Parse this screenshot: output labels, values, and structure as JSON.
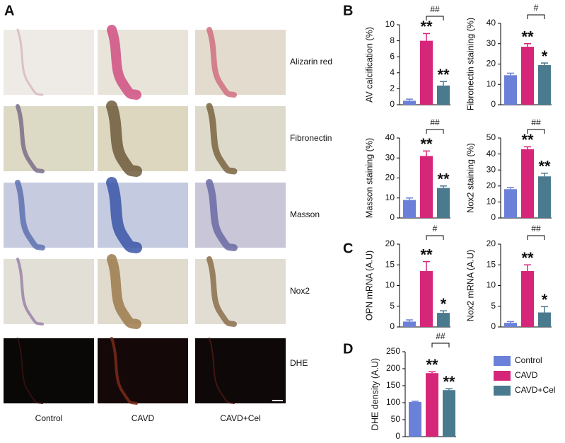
{
  "panels": [
    "A",
    "B",
    "C",
    "D"
  ],
  "images": {
    "rows": [
      "Alizarin red",
      "Fibronectin",
      "Masson",
      "Nox2",
      "DHE"
    ],
    "columns": [
      "Control",
      "CAVD",
      "CAVD+Cel"
    ]
  },
  "groups": [
    {
      "name": "Control",
      "color": "#6b80d8"
    },
    {
      "name": "CAVD",
      "color": "#d6267a"
    },
    {
      "name": "CAVD+Cel",
      "color": "#4a7a8e"
    }
  ],
  "chart_data": [
    {
      "type": "bar",
      "y_label": "AV calcification  (%)",
      "values": [
        0.5,
        8.0,
        2.4
      ],
      "errors": [
        0.2,
        0.9,
        0.5
      ],
      "annotations": [
        null,
        "**",
        "**"
      ],
      "comparison": "##",
      "ylim": [
        0,
        10
      ],
      "yticks": [
        0,
        2,
        4,
        6,
        8,
        10
      ]
    },
    {
      "type": "bar",
      "y_label": "Fibronectin staining  (%)",
      "values": [
        14.5,
        28.5,
        19.5
      ],
      "errors": [
        1,
        1.5,
        1
      ],
      "annotations": [
        null,
        "**",
        "*"
      ],
      "comparison": "#",
      "ylim": [
        0,
        40
      ],
      "yticks": [
        0,
        10,
        20,
        30,
        40
      ]
    },
    {
      "type": "bar",
      "y_label": "Masson staining  (%)",
      "values": [
        9,
        31,
        15
      ],
      "errors": [
        1,
        2.5,
        1
      ],
      "annotations": [
        null,
        "**",
        "**"
      ],
      "comparison": "##",
      "ylim": [
        0,
        40
      ],
      "yticks": [
        0,
        10,
        20,
        30,
        40
      ]
    },
    {
      "type": "bar",
      "y_label": "Nox2 staining (%)",
      "values": [
        18,
        43,
        26
      ],
      "errors": [
        1,
        1.5,
        2
      ],
      "annotations": [
        null,
        "**",
        "**"
      ],
      "comparison": "##",
      "ylim": [
        0,
        50
      ],
      "yticks": [
        0,
        10,
        20,
        30,
        40,
        50
      ]
    },
    {
      "type": "bar",
      "y_label": "OPN mRNA (A.U)",
      "values": [
        1.3,
        13.5,
        3.4
      ],
      "errors": [
        0.4,
        2.3,
        0.5
      ],
      "annotations": [
        null,
        "**",
        "*"
      ],
      "comparison": "#",
      "ylim": [
        0,
        20
      ],
      "yticks": [
        0,
        5,
        10,
        15,
        20
      ]
    },
    {
      "type": "bar",
      "y_label": "Nox2  mRNA (A.U)",
      "values": [
        1,
        13.5,
        3.5
      ],
      "errors": [
        0.3,
        1.5,
        1.4
      ],
      "annotations": [
        null,
        "**",
        "*"
      ],
      "comparison": "##",
      "ylim": [
        0,
        20
      ],
      "yticks": [
        0,
        5,
        10,
        15,
        20
      ]
    },
    {
      "type": "bar",
      "y_label": "DHE density (A.U)",
      "values": [
        102,
        187,
        137
      ],
      "errors": [
        2,
        4,
        4
      ],
      "annotations": [
        null,
        "**",
        "**"
      ],
      "comparison": "##",
      "ylim": [
        0,
        250
      ],
      "yticks": [
        0,
        50,
        100,
        150,
        200,
        250
      ]
    }
  ]
}
